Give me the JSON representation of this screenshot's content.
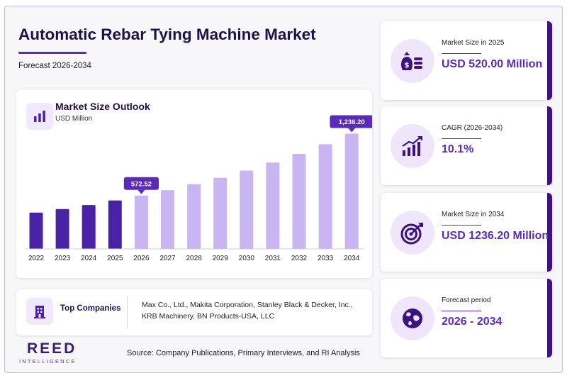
{
  "header": {
    "title": "Automatic Rebar Tying Machine Market",
    "subtitle": "Forecast 2026-2034"
  },
  "chart_card": {
    "title": "Market Size Outlook",
    "unit": "USD Million",
    "icon": "bar-chart-icon"
  },
  "chart_data": {
    "type": "bar",
    "categories": [
      "2022",
      "2023",
      "2024",
      "2025",
      "2026",
      "2027",
      "2028",
      "2029",
      "2030",
      "2031",
      "2032",
      "2033",
      "2034"
    ],
    "values": [
      390,
      428,
      471,
      520,
      572.52,
      630,
      694,
      764,
      841,
      926,
      1020,
      1123,
      1236.2
    ],
    "historical_count": 4,
    "labels": [
      {
        "index": 4,
        "text": "572.52"
      },
      {
        "index": 12,
        "text": "1,236.20"
      }
    ],
    "ylim": [
      0,
      1400
    ],
    "grid": false,
    "colors": {
      "historical": "#4a22a6",
      "forecast": "#c8b5f2",
      "callout": "#5b2bb8"
    }
  },
  "companies": {
    "label": "Top Companies",
    "icon": "building-icon",
    "text": "Max Co., Ltd., Makita Corporation, Stanley Black & Decker, Inc., KRB Machinery, BN Products-USA, LLC"
  },
  "logo": {
    "main": "REED",
    "sub": "INTELLIGENCE"
  },
  "source": "Source: Company Publications, Primary Interviews, and RI Analysis",
  "stats": [
    {
      "label": "Market Size in 2025",
      "value": "USD 520.00 Million",
      "icon": "money-bag-icon"
    },
    {
      "label": "CAGR (2026-2034)",
      "value": "10.1%",
      "icon": "growth-chart-icon"
    },
    {
      "label": "Market Size in 2034",
      "value": "USD 1236.20 Million",
      "icon": "target-icon"
    },
    {
      "label": "Forecast period",
      "value": "2026 - 2034",
      "icon": "globe-icon"
    }
  ],
  "colors": {
    "accent": "#5b2bb8",
    "dark": "#1f1147",
    "light": "#efe6fb"
  }
}
